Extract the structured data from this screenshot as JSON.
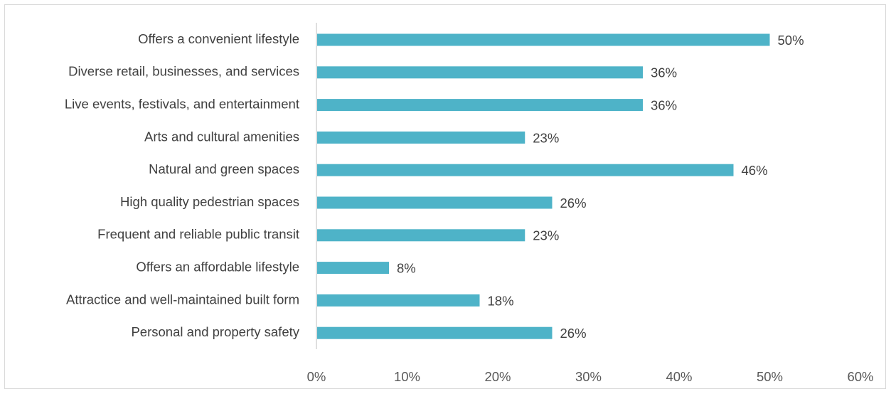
{
  "chart_data": {
    "type": "bar",
    "orientation": "horizontal",
    "categories": [
      "Offers a convenient lifestyle",
      "Diverse retail, businesses, and services",
      "Live events, festivals, and entertainment",
      "Arts and cultural amenities",
      "Natural and green spaces",
      "High quality pedestrian spaces",
      "Frequent and reliable public transit",
      "Offers an affordable lifestyle",
      "Attractice and well-maintained built form",
      "Personal and property safety"
    ],
    "values": [
      50,
      36,
      36,
      23,
      46,
      26,
      23,
      8,
      18,
      26
    ],
    "value_labels": [
      "50%",
      "36%",
      "36%",
      "23%",
      "46%",
      "26%",
      "23%",
      "8%",
      "18%",
      "26%"
    ],
    "xticks": [
      0,
      10,
      20,
      30,
      40,
      50,
      60
    ],
    "xtick_labels": [
      "0%",
      "10%",
      "20%",
      "30%",
      "40%",
      "50%",
      "60%"
    ],
    "xlim": [
      0,
      60
    ],
    "title": "",
    "xlabel": "",
    "ylabel": "",
    "grid": false,
    "legend": "none",
    "colors": {
      "bar": "#4eb3c8",
      "axis": "#bfbfbf",
      "text": "#404040"
    }
  }
}
